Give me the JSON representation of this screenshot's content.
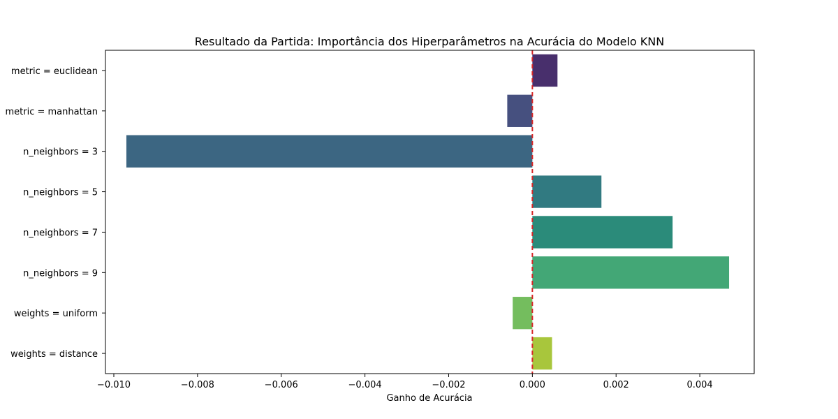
{
  "chart_data": {
    "type": "bar",
    "orientation": "horizontal",
    "title": "Resultado da Partida: Importância dos Hiperparâmetros na Acurácia do Modelo KNN",
    "xlabel": "Ganho de Acurácia",
    "ylabel": "",
    "xlim": [
      -0.0102,
      0.0053
    ],
    "x_ticks": [
      -0.01,
      -0.008,
      -0.006,
      -0.004,
      -0.002,
      0.0,
      0.002,
      0.004
    ],
    "x_tick_labels": [
      "−0.010",
      "−0.008",
      "−0.006",
      "−0.004",
      "−0.002",
      "0.000",
      "0.002",
      "0.004"
    ],
    "categories": [
      "metric = euclidean",
      "metric = manhattan",
      "n_neighbors = 3",
      "n_neighbors = 5",
      "n_neighbors = 7",
      "n_neighbors = 9",
      "weights = uniform",
      "weights = distance"
    ],
    "values": [
      0.0006,
      -0.0006,
      -0.0097,
      0.00165,
      0.00335,
      0.0047,
      -0.00047,
      0.00047
    ],
    "colors": [
      "#482f6c",
      "#46507f",
      "#3c6682",
      "#317a81",
      "#2b8b7a",
      "#43a776",
      "#74bd5e",
      "#a8c63c"
    ],
    "reference_line": {
      "x": 0.0,
      "color": "#d62728",
      "style": "dashed"
    },
    "grid": false,
    "legend": "none"
  }
}
